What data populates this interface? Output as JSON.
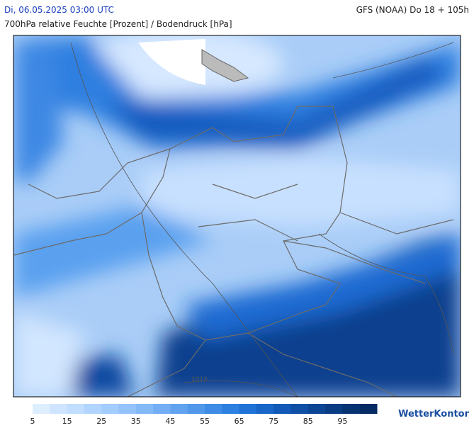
{
  "header": {
    "datetime": "Di, 06.05.2025 03:00 UTC",
    "model": "GFS (NOAA) Do 18 + 105h",
    "subtitle": "700hPa relative Feuchte [Prozent] / Bodendruck [hPa]"
  },
  "map": {
    "isobar_label": "1010"
  },
  "colorbar": {
    "ticks": [
      5,
      15,
      25,
      35,
      45,
      55,
      65,
      75,
      85,
      95
    ],
    "colors": [
      "#ddeeff",
      "#cfe5ff",
      "#c1ddff",
      "#b2d5ff",
      "#a3ccff",
      "#94c3fc",
      "#84b9f8",
      "#73aef4",
      "#62a3f0",
      "#5198eb",
      "#3f8ce6",
      "#2d7fe0",
      "#1f72d6",
      "#1866c8",
      "#135ab8",
      "#0f4fa6",
      "#0c4594",
      "#0a3c83",
      "#083373",
      "#062a63"
    ]
  },
  "brand": "WetterKontor"
}
